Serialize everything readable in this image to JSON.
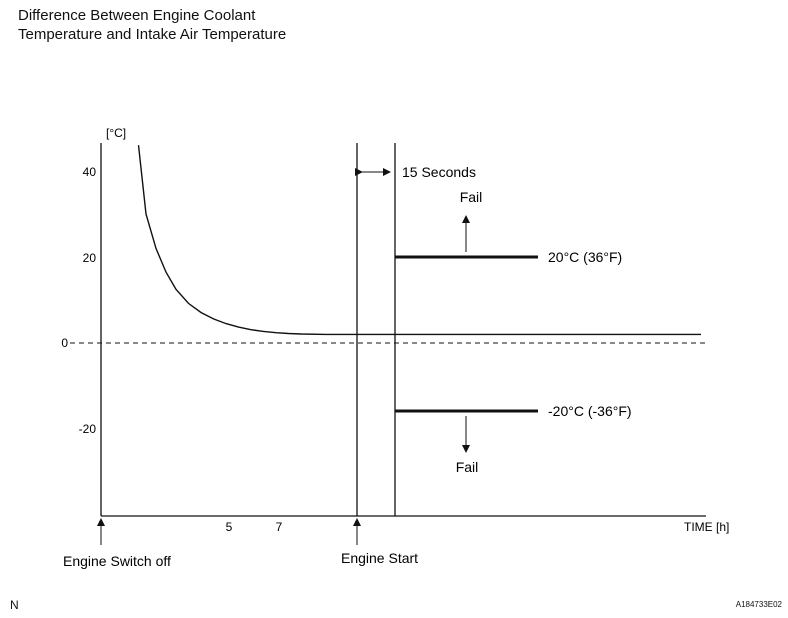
{
  "title_lines": [
    "Difference Between Engine Coolant",
    "Temperature and Intake Air Temperature"
  ],
  "chart_data": {
    "type": "line",
    "title": "Difference Between Engine Coolant Temperature and Intake Air Temperature",
    "ylabel": "[°C]",
    "xlabel": "TIME [h]",
    "yticks": [
      40,
      20,
      0,
      -20
    ],
    "xticks": [
      5,
      7
    ],
    "series": [
      {
        "values_description": "",
        "points": [
          [
            1.5,
            46
          ],
          [
            1.8,
            30
          ],
          [
            2.2,
            22
          ],
          [
            2.6,
            16.5
          ],
          [
            3.0,
            12.5
          ],
          [
            3.5,
            9.2
          ],
          [
            4.0,
            7.1
          ],
          [
            4.5,
            5.6
          ],
          [
            5.0,
            4.5
          ],
          [
            5.5,
            3.7
          ],
          [
            6.0,
            3.1
          ],
          [
            6.5,
            2.7
          ],
          [
            7.0,
            2.4
          ],
          [
            7.5,
            2.2
          ],
          [
            8.0,
            2.1
          ],
          [
            9.0,
            2.0
          ],
          [
            10.0,
            2.0
          ],
          [
            11.0,
            2.0
          ],
          [
            14.0,
            2.0
          ],
          [
            18.0,
            2.0
          ],
          [
            24.0,
            2.0
          ]
        ]
      }
    ],
    "reference_line": {
      "y": 0,
      "style": "dashed"
    },
    "thresholds": [
      {
        "value": 20,
        "label": "20°C (36°F)",
        "result": "Fail"
      },
      {
        "value": -20,
        "label": "-20°C (-36°F)",
        "result": "Fail"
      }
    ],
    "events": {
      "engine_off": "Engine Switch off",
      "engine_start": "Engine Start",
      "delay": "15 Seconds"
    }
  },
  "footer": {
    "left": "N",
    "right": "A184733E02"
  }
}
